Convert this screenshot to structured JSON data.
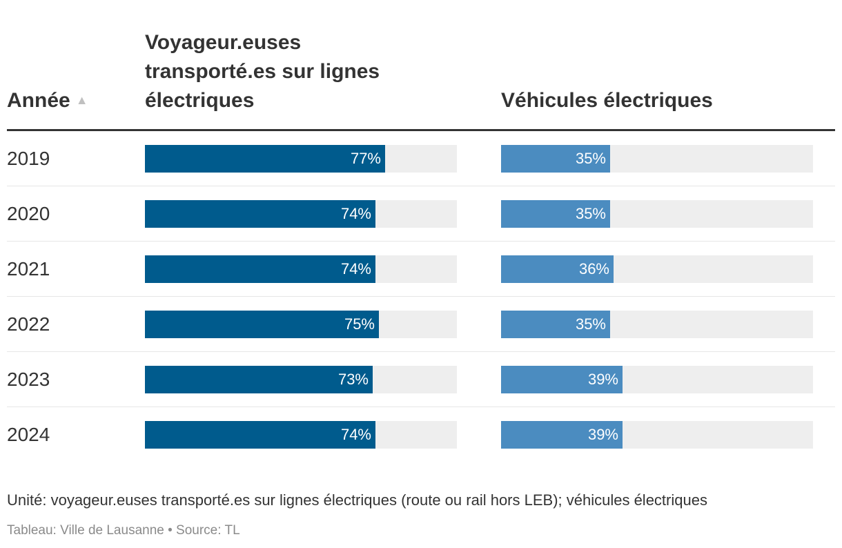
{
  "chart_data": {
    "type": "table",
    "columns": [
      "Année",
      "Voyageur.euses transporté.es sur lignes électriques",
      "Véhicules électriques"
    ],
    "sort_indicator": "▲",
    "unit": "%",
    "rows": [
      {
        "year": "2019",
        "passengers": 77,
        "vehicles": 35
      },
      {
        "year": "2020",
        "passengers": 74,
        "vehicles": 35
      },
      {
        "year": "2021",
        "passengers": 74,
        "vehicles": 36
      },
      {
        "year": "2022",
        "passengers": 75,
        "vehicles": 35
      },
      {
        "year": "2023",
        "passengers": 73,
        "vehicles": 39
      },
      {
        "year": "2024",
        "passengers": 74,
        "vehicles": 39
      }
    ],
    "bar_max": 100,
    "colors": {
      "passengers": "#005b8d",
      "vehicles": "#4b8cc0",
      "track": "#eeeeee"
    }
  },
  "footer": {
    "unit_note": "Unité: voyageur.euses transporté.es sur lignes électriques (route ou rail hors LEB); véhicules électriques",
    "source": "Tableau: Ville de Lausanne • Source: TL"
  }
}
